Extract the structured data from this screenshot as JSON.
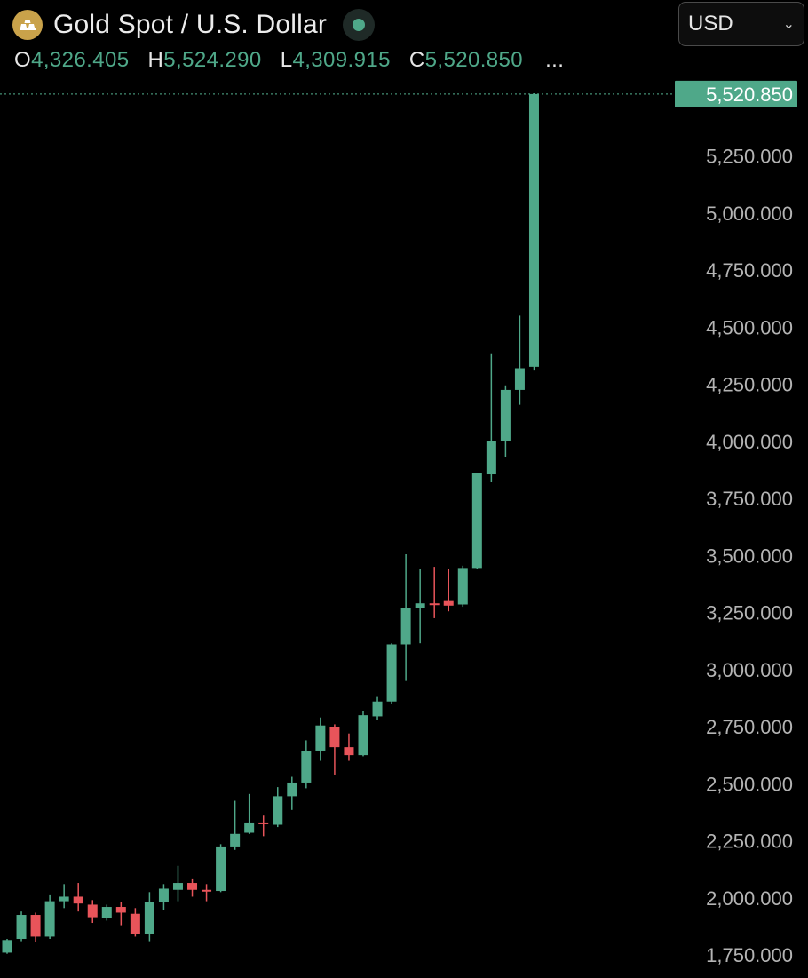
{
  "header": {
    "title": "Gold Spot / U.S. Dollar",
    "logo_icon": "gold-bars-icon",
    "status_icon": "market-status-dot-icon"
  },
  "ohlc": {
    "o_label": "O",
    "o_value": "4,326.405",
    "h_label": "H",
    "h_value": "5,524.290",
    "l_label": "L",
    "l_value": "4,309.915",
    "c_label": "C",
    "c_value": "5,520.850",
    "more": "..."
  },
  "currency": {
    "selected": "USD"
  },
  "colors": {
    "up": "#4fa889",
    "down": "#e8545a",
    "background": "#000000",
    "axis_text": "#b4b4b4"
  },
  "chart_data": {
    "type": "candlestick",
    "y_axis_ticks": [
      1750,
      2000,
      2250,
      2500,
      2750,
      3000,
      3250,
      3500,
      3750,
      4000,
      4250,
      4500,
      4750,
      5000,
      5250
    ],
    "y_axis_tick_labels": [
      "1,750.000",
      "2,000.000",
      "2,250.000",
      "2,500.000",
      "2,750.000",
      "3,000.000",
      "3,250.000",
      "3,500.000",
      "3,750.000",
      "4,000.000",
      "4,250.000",
      "4,500.000",
      "4,750.000",
      "5,000.000",
      "5,250.000"
    ],
    "ylim": [
      1700,
      5550
    ],
    "last_price": 5520.85,
    "last_price_label": "5,520.850",
    "candles": [
      {
        "o": 1760,
        "h": 1820,
        "l": 1755,
        "c": 1815
      },
      {
        "o": 1820,
        "h": 1940,
        "l": 1810,
        "c": 1925
      },
      {
        "o": 1925,
        "h": 1935,
        "l": 1805,
        "c": 1830
      },
      {
        "o": 1830,
        "h": 2015,
        "l": 1820,
        "c": 1985
      },
      {
        "o": 1985,
        "h": 2060,
        "l": 1955,
        "c": 2005
      },
      {
        "o": 2005,
        "h": 2065,
        "l": 1940,
        "c": 1975
      },
      {
        "o": 1970,
        "h": 1990,
        "l": 1890,
        "c": 1915
      },
      {
        "o": 1910,
        "h": 1970,
        "l": 1900,
        "c": 1960
      },
      {
        "o": 1960,
        "h": 1980,
        "l": 1880,
        "c": 1935
      },
      {
        "o": 1930,
        "h": 1955,
        "l": 1830,
        "c": 1840
      },
      {
        "o": 1840,
        "h": 2025,
        "l": 1810,
        "c": 1980
      },
      {
        "o": 1980,
        "h": 2060,
        "l": 1945,
        "c": 2040
      },
      {
        "o": 2035,
        "h": 2140,
        "l": 1985,
        "c": 2065
      },
      {
        "o": 2065,
        "h": 2085,
        "l": 2005,
        "c": 2035
      },
      {
        "o": 2035,
        "h": 2060,
        "l": 1985,
        "c": 2030
      },
      {
        "o": 2030,
        "h": 2235,
        "l": 2025,
        "c": 2225
      },
      {
        "o": 2225,
        "h": 2425,
        "l": 2210,
        "c": 2280
      },
      {
        "o": 2285,
        "h": 2455,
        "l": 2280,
        "c": 2330
      },
      {
        "o": 2330,
        "h": 2360,
        "l": 2270,
        "c": 2325
      },
      {
        "o": 2320,
        "h": 2485,
        "l": 2310,
        "c": 2445
      },
      {
        "o": 2445,
        "h": 2530,
        "l": 2385,
        "c": 2505
      },
      {
        "o": 2505,
        "h": 2690,
        "l": 2480,
        "c": 2645
      },
      {
        "o": 2645,
        "h": 2790,
        "l": 2600,
        "c": 2755
      },
      {
        "o": 2750,
        "h": 2760,
        "l": 2540,
        "c": 2660
      },
      {
        "o": 2660,
        "h": 2720,
        "l": 2600,
        "c": 2625
      },
      {
        "o": 2625,
        "h": 2820,
        "l": 2620,
        "c": 2800
      },
      {
        "o": 2795,
        "h": 2880,
        "l": 2780,
        "c": 2860
      },
      {
        "o": 2860,
        "h": 3115,
        "l": 2850,
        "c": 3110
      },
      {
        "o": 3110,
        "h": 3505,
        "l": 2950,
        "c": 3270
      },
      {
        "o": 3270,
        "h": 3440,
        "l": 3115,
        "c": 3290
      },
      {
        "o": 3290,
        "h": 3450,
        "l": 3225,
        "c": 3285
      },
      {
        "o": 3300,
        "h": 3440,
        "l": 3255,
        "c": 3280
      },
      {
        "o": 3285,
        "h": 3455,
        "l": 3275,
        "c": 3445
      },
      {
        "o": 3445,
        "h": 3860,
        "l": 3440,
        "c": 3860
      },
      {
        "o": 3855,
        "h": 4385,
        "l": 3820,
        "c": 4000
      },
      {
        "o": 4000,
        "h": 4245,
        "l": 3930,
        "c": 4225
      },
      {
        "o": 4225,
        "h": 4550,
        "l": 4160,
        "c": 4320
      },
      {
        "o": 4326.405,
        "h": 5524.29,
        "l": 4309.915,
        "c": 5520.85
      }
    ]
  }
}
